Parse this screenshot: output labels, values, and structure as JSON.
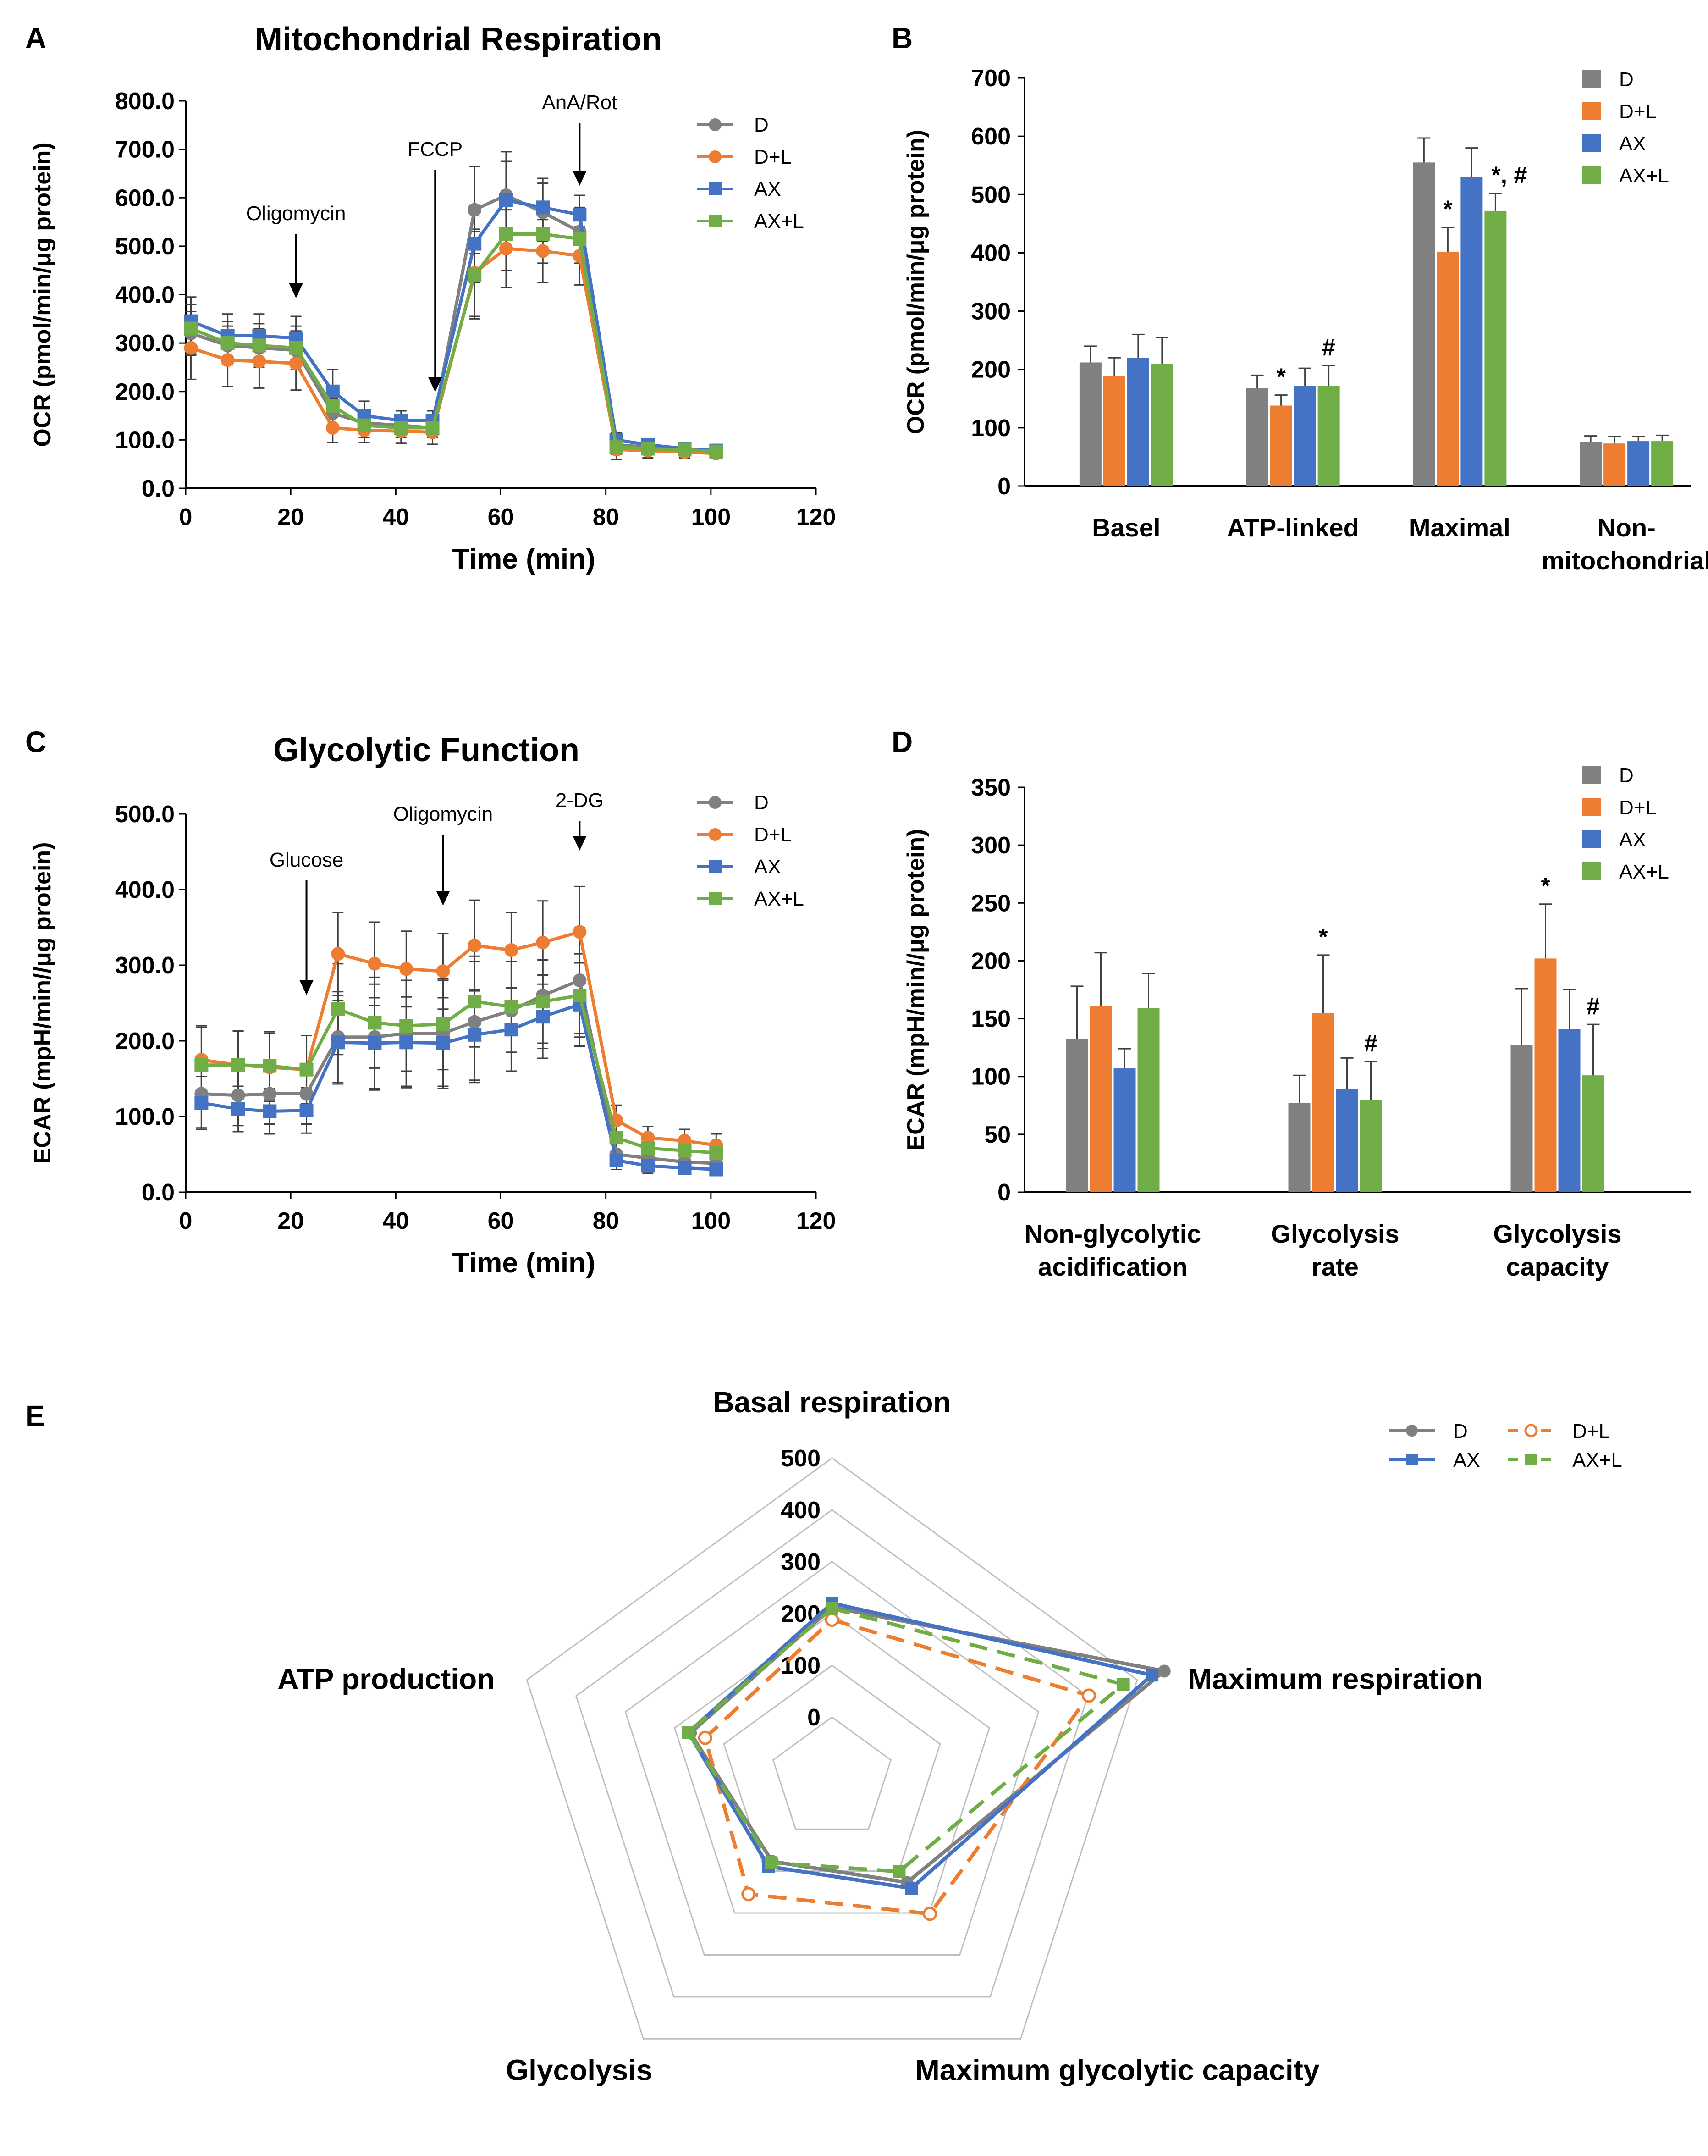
{
  "colors": {
    "D": "#808080",
    "D+L": "#ED7D31",
    "AX": "#4472C4",
    "AX+L": "#70AD47",
    "grid": "#BFBFBF",
    "axis": "#000000",
    "err": "#404040"
  },
  "groups": [
    "D",
    "D+L",
    "AX",
    "AX+L"
  ],
  "chart_data": [
    {
      "panel": "A",
      "type": "line",
      "title": "Mitochondrial Respiration",
      "xlabel": "Time (min)",
      "ylabel": "OCR (pmol/min/μg protein)",
      "xlim": [
        0,
        120
      ],
      "xticks": [
        "0",
        "20",
        "40",
        "60",
        "80",
        "100",
        "120"
      ],
      "ylim": [
        0,
        800
      ],
      "yticks": [
        "0.0",
        "100.0",
        "200.0",
        "300.0",
        "400.0",
        "500.0",
        "600.0",
        "700.0",
        "800.0"
      ],
      "x": [
        1,
        8,
        14,
        21,
        28,
        34,
        41,
        47,
        55,
        61,
        68,
        75,
        82,
        88,
        95,
        101
      ],
      "series": [
        {
          "name": "D",
          "values": [
            320,
            295,
            290,
            285,
            155,
            135,
            130,
            125,
            575,
            605,
            570,
            530,
            90,
            85,
            80,
            75
          ],
          "err": [
            45,
            40,
            40,
            40,
            30,
            20,
            20,
            20,
            90,
            90,
            60,
            50,
            15,
            12,
            10,
            10
          ]
        },
        {
          "name": "D+L",
          "values": [
            290,
            265,
            262,
            258,
            125,
            120,
            118,
            116,
            445,
            495,
            490,
            480,
            80,
            78,
            75,
            72
          ],
          "err": [
            65,
            55,
            55,
            55,
            30,
            25,
            25,
            25,
            90,
            80,
            65,
            60,
            20,
            15,
            12,
            10
          ]
        },
        {
          "name": "AX",
          "values": [
            345,
            315,
            315,
            310,
            200,
            150,
            140,
            140,
            505,
            595,
            580,
            565,
            100,
            90,
            82,
            78
          ],
          "err": [
            50,
            45,
            45,
            45,
            45,
            30,
            20,
            20,
            80,
            80,
            60,
            40,
            15,
            12,
            10,
            10
          ]
        },
        {
          "name": "AX+L",
          "values": [
            330,
            300,
            295,
            290,
            170,
            130,
            125,
            125,
            440,
            525,
            525,
            515,
            85,
            82,
            80,
            76
          ],
          "err": [
            50,
            45,
            45,
            45,
            40,
            25,
            20,
            20,
            90,
            75,
            60,
            50,
            15,
            12,
            10,
            10
          ]
        }
      ],
      "annotations": [
        {
          "label": "Oligomycin",
          "x": 21
        },
        {
          "label": "FCCP",
          "x": 47.5
        },
        {
          "label": "AnA/Rot",
          "x": 75
        }
      ]
    },
    {
      "panel": "B",
      "type": "bar",
      "ylabel": "OCR (pmol/min/μg protein)",
      "ylim": [
        0,
        700
      ],
      "yticks": [
        "0",
        "100",
        "200",
        "300",
        "400",
        "500",
        "600",
        "700"
      ],
      "categories": [
        [
          "Basel"
        ],
        [
          "ATP-linked"
        ],
        [
          "Maximal"
        ],
        [
          "Non-",
          "mitochondrial"
        ]
      ],
      "series": [
        {
          "name": "D",
          "values": [
            212,
            168,
            555,
            76
          ],
          "err": [
            28,
            22,
            42,
            10
          ]
        },
        {
          "name": "D+L",
          "values": [
            188,
            138,
            402,
            73
          ],
          "err": [
            32,
            18,
            42,
            12
          ]
        },
        {
          "name": "AX",
          "values": [
            220,
            172,
            530,
            77
          ],
          "err": [
            40,
            30,
            50,
            8
          ]
        },
        {
          "name": "AX+L",
          "values": [
            210,
            172,
            472,
            77
          ],
          "err": [
            45,
            35,
            30,
            10
          ]
        }
      ],
      "marks": [
        {
          "cat": 1,
          "series": 1,
          "text": "*"
        },
        {
          "cat": 1,
          "series": 3,
          "text": "#"
        },
        {
          "cat": 2,
          "series": 1,
          "text": "*"
        },
        {
          "cat": 2,
          "series": 3,
          "text": "*, #"
        }
      ]
    },
    {
      "panel": "C",
      "type": "line",
      "title": "Glycolytic Function",
      "xlabel": "Time (min)",
      "ylabel": "ECAR (mpH/min//μg protein)",
      "xlim": [
        0,
        120
      ],
      "xticks": [
        "0",
        "20",
        "40",
        "60",
        "80",
        "100",
        "120"
      ],
      "ylim": [
        0,
        500
      ],
      "yticks": [
        "0.0",
        "100.0",
        "200.0",
        "300.0",
        "400.0",
        "500.0"
      ],
      "x": [
        3,
        10,
        16,
        23,
        29,
        36,
        42,
        49,
        55,
        62,
        68,
        75,
        82,
        88,
        95,
        101
      ],
      "series": [
        {
          "name": "D",
          "values": [
            130,
            128,
            130,
            130,
            205,
            205,
            210,
            210,
            225,
            240,
            260,
            280,
            50,
            45,
            40,
            38
          ],
          "err": [
            45,
            40,
            40,
            40,
            60,
            70,
            70,
            70,
            80,
            80,
            70,
            70,
            15,
            12,
            10,
            10
          ]
        },
        {
          "name": "D+L",
          "values": [
            175,
            168,
            165,
            162,
            315,
            302,
            295,
            292,
            326,
            320,
            330,
            344,
            95,
            72,
            68,
            62
          ],
          "err": [
            45,
            45,
            45,
            45,
            55,
            55,
            50,
            50,
            60,
            50,
            55,
            60,
            20,
            15,
            15,
            15
          ]
        },
        {
          "name": "AX",
          "values": [
            118,
            110,
            107,
            108,
            198,
            197,
            198,
            197,
            208,
            215,
            232,
            248,
            42,
            35,
            32,
            30
          ],
          "err": [
            35,
            30,
            30,
            30,
            55,
            60,
            60,
            60,
            60,
            55,
            55,
            55,
            12,
            10,
            8,
            8
          ]
        },
        {
          "name": "AX+L",
          "values": [
            168,
            168,
            167,
            162,
            242,
            224,
            220,
            222,
            252,
            245,
            252,
            260,
            72,
            58,
            55,
            52
          ],
          "err": [
            50,
            45,
            45,
            45,
            60,
            60,
            60,
            60,
            60,
            60,
            55,
            55,
            18,
            15,
            12,
            12
          ]
        }
      ],
      "annotations": [
        {
          "label": "Glucose",
          "x": 23
        },
        {
          "label": "Oligomycin",
          "x": 49
        },
        {
          "label": "2-DG",
          "x": 75
        }
      ]
    },
    {
      "panel": "D",
      "type": "bar",
      "ylabel": "ECAR (mpH/min//μg protein)",
      "ylim": [
        0,
        350
      ],
      "yticks": [
        "0",
        "50",
        "100",
        "150",
        "200",
        "250",
        "300",
        "350"
      ],
      "categories": [
        [
          "Non-glycolytic",
          "acidification"
        ],
        [
          "Glycolysis",
          "rate"
        ],
        [
          "Glycolysis",
          "capacity"
        ]
      ],
      "series": [
        {
          "name": "D",
          "values": [
            132,
            77,
            127
          ],
          "err": [
            46,
            24,
            49
          ]
        },
        {
          "name": "D+L",
          "values": [
            161,
            155,
            202
          ],
          "err": [
            46,
            50,
            47
          ]
        },
        {
          "name": "AX",
          "values": [
            107,
            89,
            141
          ],
          "err": [
            17,
            27,
            34
          ]
        },
        {
          "name": "AX+L",
          "values": [
            159,
            80,
            101
          ],
          "err": [
            30,
            33,
            44
          ]
        }
      ],
      "marks": [
        {
          "cat": 1,
          "series": 1,
          "text": "*"
        },
        {
          "cat": 1,
          "series": 3,
          "text": "#"
        },
        {
          "cat": 2,
          "series": 1,
          "text": "*"
        },
        {
          "cat": 2,
          "series": 3,
          "text": "#"
        }
      ]
    },
    {
      "panel": "E",
      "type": "radar",
      "axes": [
        "Basal  respiration",
        "Maximum respiration",
        "Maximum  glycolytic capacity",
        "Glycolysis",
        "ATP  production"
      ],
      "rlim": [
        0,
        500
      ],
      "rticks": [
        "0",
        "100",
        "200",
        "300",
        "400",
        "500"
      ],
      "series": [
        {
          "name": "D",
          "values": [
            212,
            555,
            127,
            77,
            168
          ],
          "dashed": false
        },
        {
          "name": "D+L",
          "values": [
            188,
            402,
            202,
            155,
            138
          ],
          "dashed": true
        },
        {
          "name": "AX",
          "values": [
            220,
            530,
            141,
            89,
            172
          ],
          "dashed": false
        },
        {
          "name": "AX+L",
          "values": [
            210,
            472,
            101,
            80,
            172
          ],
          "dashed": true
        }
      ]
    }
  ]
}
